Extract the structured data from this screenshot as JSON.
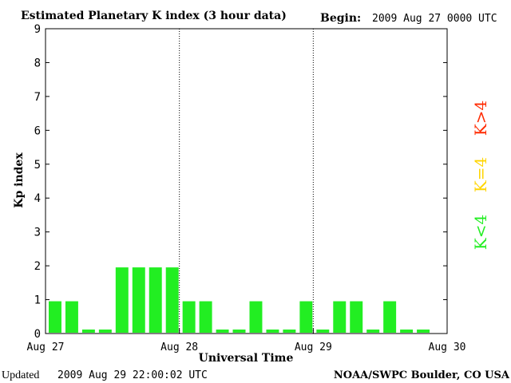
{
  "header": {
    "title": "Estimated Planetary K index (3 hour data)",
    "begin_label": "Begin:",
    "begin_value": "2009 Aug 27 0000 UTC"
  },
  "footer": {
    "updated_label": "Updated",
    "updated_value": "2009 Aug 29 22:00:02 UTC",
    "credit": "NOAA/SWPC Boulder, CO USA"
  },
  "legend": [
    {
      "label": "K>4",
      "color": "#ff2a00"
    },
    {
      "label": "K=4",
      "color": "#ffd500"
    },
    {
      "label": "K<4",
      "color": "#22ee22"
    }
  ],
  "chart_data": {
    "type": "bar",
    "title": "Estimated Planetary K index (3 hour data)",
    "xlabel": "Universal Time",
    "ylabel": "Kp index",
    "ylim": [
      0,
      9
    ],
    "yticks": [
      0,
      1,
      2,
      3,
      4,
      5,
      6,
      7,
      8,
      9
    ],
    "xticks": [
      "Aug 27",
      "Aug 28",
      "Aug 29",
      "Aug 30"
    ],
    "bars_per_day": 8,
    "bar_color": "#22ee22",
    "values": [
      1,
      1,
      0,
      0,
      2,
      2,
      2,
      2,
      1,
      1,
      0,
      0,
      1,
      0,
      0,
      1,
      0,
      1,
      1,
      0,
      1,
      0,
      0
    ]
  }
}
